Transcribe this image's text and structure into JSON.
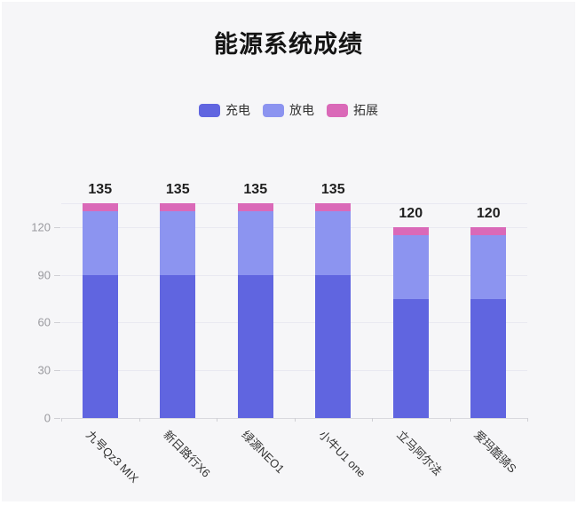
{
  "title": "能源系统成绩",
  "legend": [
    {
      "id": "charge",
      "label": "充电",
      "color": "#6065e0"
    },
    {
      "id": "discharge",
      "label": "放电",
      "color": "#8c94f0"
    },
    {
      "id": "expand",
      "label": "拓展",
      "color": "#da69b8"
    }
  ],
  "chart_data": {
    "type": "bar",
    "stacked": true,
    "title": "能源系统成绩",
    "categories": [
      "九号Qz3 MIX",
      "新日路行X6",
      "绿源NEO1",
      "小牛U1 one",
      "立马阿尔法",
      "爱玛酷骑S"
    ],
    "series": [
      {
        "name": "充电",
        "id": "charge",
        "color": "#6065e0",
        "values": [
          90,
          90,
          90,
          90,
          75,
          75
        ]
      },
      {
        "name": "放电",
        "id": "discharge",
        "color": "#8c94f0",
        "values": [
          40,
          40,
          40,
          40,
          40,
          40
        ]
      },
      {
        "name": "拓展",
        "id": "expand",
        "color": "#da69b8",
        "values": [
          5,
          5,
          5,
          5,
          5,
          5
        ]
      }
    ],
    "totals": [
      135,
      135,
      135,
      135,
      120,
      120
    ],
    "yticks": [
      0,
      30,
      60,
      90,
      120
    ],
    "ylim": [
      0,
      135
    ],
    "grid": true,
    "legend_position": "top",
    "xlabel": "",
    "ylabel": ""
  },
  "colors": {
    "background": "#f6f6f8",
    "gridline": "#e9e9f1",
    "axis_line": "#d9d9de",
    "ytick_text": "#9a9a9f",
    "xtick_text": "#333333",
    "total_text": "#1f1f1f",
    "title_text": "#141414"
  }
}
